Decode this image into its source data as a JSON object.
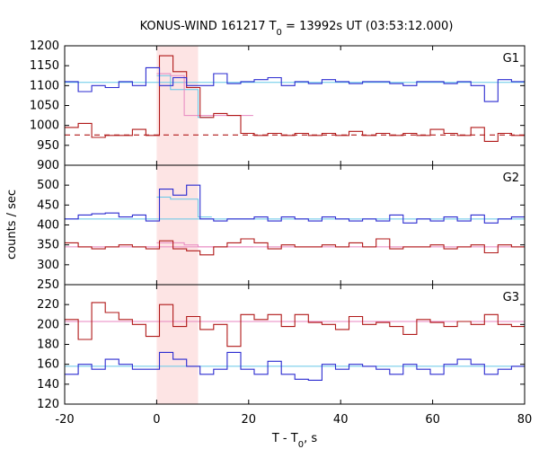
{
  "chart_data": {
    "type": "line",
    "title_main": "KONUS-WIND 161217 T",
    "title_sub": "0",
    "title_rest": " = 13992s UT (03:53:12.000)",
    "xlabel_main": "T - T",
    "xlabel_sub": "0",
    "xlabel_rest": ", s",
    "ylabel": "counts / sec",
    "xlim": [
      -20,
      80
    ],
    "xticks": [
      "-20",
      "0",
      "20",
      "40",
      "60",
      "80"
    ],
    "xtick_values": [
      -20,
      0,
      20,
      40,
      60,
      80
    ],
    "highlight_interval": [
      0,
      9.0
    ],
    "bin_edges": [
      -20,
      -17.056,
      -14.112,
      -11.168,
      -8.224,
      -5.28,
      -2.336,
      0.608,
      3.552,
      6.496,
      9.44,
      12.384,
      15.328,
      18.272,
      21.216,
      24.16,
      27.104,
      30.048,
      32.992,
      35.936,
      38.88,
      41.824,
      44.768,
      47.712,
      50.656,
      53.6,
      56.544,
      59.488,
      62.432,
      65.376,
      68.32,
      71.264,
      74.208,
      77.152,
      80
    ],
    "panels": [
      {
        "label": "G1",
        "ylim": [
          900,
          1200
        ],
        "yticks": [
          "900",
          "950",
          "1000",
          "1050",
          "1100",
          "1150",
          "1200"
        ],
        "ytick_values": [
          900,
          950,
          1000,
          1050,
          1100,
          1150,
          1200
        ],
        "background_level": 1108,
        "lower_background_level": 976,
        "upper_series": [
          1110,
          1085,
          1100,
          1095,
          1110,
          1100,
          1145,
          1100,
          1120,
          1100,
          1100,
          1130,
          1105,
          1110,
          1115,
          1120,
          1100,
          1110,
          1105,
          1115,
          1110,
          1105,
          1110,
          1110,
          1105,
          1100,
          1110,
          1110,
          1105,
          1110,
          1100,
          1060,
          1115,
          1110
        ],
        "upper_fit_high": [
          1125,
          1090,
          1090,
          1020
        ],
        "lower_series": [
          995,
          1005,
          970,
          975,
          975,
          990,
          975,
          1175,
          1135,
          1095,
          1020,
          1030,
          1025,
          980,
          975,
          980,
          975,
          980,
          975,
          980,
          975,
          985,
          975,
          980,
          975,
          980,
          975,
          990,
          980,
          975,
          995,
          960,
          980,
          975
        ],
        "lower_fit_high": [
          1130,
          1125,
          1025,
          1025
        ]
      },
      {
        "label": "G2",
        "ylim": [
          250,
          550
        ],
        "yticks": [
          "250",
          "300",
          "350",
          "400",
          "450",
          "500",
          "550"
        ],
        "ytick_values": [
          250,
          300,
          350,
          400,
          450,
          500,
          550
        ],
        "background_level": 415,
        "lower_background_level": 345,
        "upper_series": [
          415,
          425,
          428,
          430,
          420,
          425,
          410,
          490,
          475,
          500,
          415,
          410,
          415,
          415,
          420,
          410,
          420,
          415,
          410,
          420,
          415,
          410,
          415,
          410,
          425,
          405,
          415,
          410,
          420,
          410,
          425,
          405,
          415,
          420
        ],
        "upper_fit_high": [
          470,
          465,
          465,
          420
        ],
        "lower_series": [
          355,
          345,
          340,
          345,
          350,
          345,
          340,
          360,
          340,
          335,
          325,
          345,
          355,
          365,
          355,
          340,
          350,
          345,
          345,
          350,
          345,
          355,
          345,
          365,
          340,
          345,
          345,
          350,
          340,
          345,
          350,
          330,
          350,
          345
        ],
        "lower_fit_high": [
          355,
          355,
          350,
          345
        ]
      },
      {
        "label": "G3",
        "ylim": [
          120,
          240
        ],
        "yticks": [
          "120",
          "140",
          "160",
          "180",
          "200",
          "220",
          "240"
        ],
        "ytick_values": [
          120,
          140,
          160,
          180,
          200,
          220,
          240
        ],
        "background_level": 158,
        "lower_background_level": 203,
        "upper_series": [
          150,
          160,
          155,
          165,
          160,
          155,
          155,
          172,
          165,
          158,
          150,
          155,
          172,
          155,
          150,
          163,
          150,
          145,
          144,
          160,
          155,
          160,
          158,
          155,
          150,
          160,
          155,
          150,
          160,
          165,
          160,
          150,
          155,
          158
        ],
        "lower_series": [
          205,
          185,
          222,
          212,
          205,
          200,
          188,
          220,
          198,
          208,
          195,
          200,
          178,
          210,
          205,
          210,
          198,
          210,
          202,
          200,
          195,
          208,
          200,
          202,
          198,
          190,
          205,
          202,
          198,
          203,
          200,
          210,
          200,
          198
        ]
      }
    ]
  },
  "colors": {
    "upper_series": "#2b2bd0",
    "upper_fit": "#64c8e8",
    "lower_series": "#b01818",
    "lower_fit": "#e886c0",
    "highlight": "#fde4e4",
    "frame": "#000000"
  }
}
